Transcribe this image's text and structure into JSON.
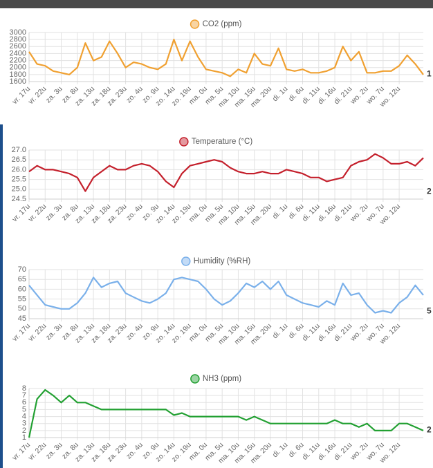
{
  "chart_data": [
    {
      "type": "line",
      "title": "CO2 (ppm)",
      "color": "#f0a030",
      "edge_label": "1",
      "categories": [
        "vr. 17u",
        null,
        "vr. 22u",
        null,
        "za. 3u",
        null,
        "za. 8u",
        null,
        "za. 13u",
        null,
        "za. 18u",
        null,
        "za. 23u",
        null,
        "zo. 4u",
        null,
        "zo. 9u",
        null,
        "zo. 14u",
        null,
        "zo. 19u",
        null,
        "ma. 0u",
        null,
        "ma. 5u",
        null,
        "ma. 10u",
        null,
        "ma. 15u",
        null,
        "ma. 20u",
        null,
        "di. 1u",
        null,
        "di. 6u",
        null,
        "di. 11u",
        null,
        "di. 16u",
        null,
        "di. 21u",
        null,
        "wo. 2u",
        null,
        "wo. 7u",
        null,
        "wo. 12u",
        null,
        null,
        null
      ],
      "values": [
        2450,
        2100,
        2050,
        1900,
        1850,
        1800,
        2000,
        2700,
        2200,
        2300,
        2750,
        2400,
        2000,
        2150,
        2100,
        2000,
        1950,
        2100,
        2800,
        2200,
        2750,
        2300,
        1950,
        1900,
        1850,
        1750,
        1950,
        1850,
        2400,
        2100,
        2050,
        2550,
        1950,
        1900,
        1950,
        1850,
        1850,
        1900,
        2000,
        2600,
        2200,
        2450,
        1850,
        1850,
        1900,
        1900,
        2050,
        2350,
        2100,
        1800
      ],
      "ylim": [
        1600,
        3000
      ],
      "yticks": [
        1600,
        1800,
        2000,
        2200,
        2400,
        2600,
        2800,
        3000
      ],
      "grid": true
    },
    {
      "type": "line",
      "title": "Temperature (°C)",
      "color": "#c4202c",
      "edge_label": "2",
      "categories": [
        "vr. 17u",
        null,
        "vr. 22u",
        null,
        "za. 3u",
        null,
        "za. 8u",
        null,
        "za. 13u",
        null,
        "za. 18u",
        null,
        "za. 23u",
        null,
        "zo. 4u",
        null,
        "zo. 9u",
        null,
        "zo. 14u",
        null,
        "zo. 19u",
        null,
        "ma. 0u",
        null,
        "ma. 5u",
        null,
        "ma. 10u",
        null,
        "ma. 15u",
        null,
        "ma. 20u",
        null,
        "di. 1u",
        null,
        "di. 6u",
        null,
        "di. 11u",
        null,
        "di. 16u",
        null,
        "di. 21u",
        null,
        "wo. 2u",
        null,
        "wo. 7u",
        null,
        "wo. 12u",
        null,
        null,
        null
      ],
      "values": [
        25.9,
        26.2,
        26.0,
        26.0,
        25.9,
        25.8,
        25.6,
        24.9,
        25.6,
        25.9,
        26.2,
        26.0,
        26.0,
        26.2,
        26.3,
        26.2,
        25.9,
        25.4,
        25.1,
        25.8,
        26.2,
        26.3,
        26.4,
        26.5,
        26.4,
        26.1,
        25.9,
        25.8,
        25.8,
        25.9,
        25.8,
        25.8,
        26.0,
        25.9,
        25.8,
        25.6,
        25.6,
        25.4,
        25.5,
        25.6,
        26.2,
        26.4,
        26.5,
        26.8,
        26.6,
        26.3,
        26.3,
        26.4,
        26.2,
        26.6
      ],
      "ylim": [
        24.5,
        27.0
      ],
      "yticks": [
        24.5,
        {
          "value": 25,
          "label": "25.0"
        },
        25.5,
        {
          "value": 26,
          "label": "26.0"
        },
        26.5,
        {
          "value": 27,
          "label": "27.0"
        }
      ],
      "grid": true
    },
    {
      "type": "line",
      "title": "Humidity (%RH)",
      "color": "#7ab0ea",
      "edge_label": "5",
      "categories": [
        "vr. 17u",
        null,
        "vr. 22u",
        null,
        "za. 3u",
        null,
        "za. 8u",
        null,
        "za. 13u",
        null,
        "za. 18u",
        null,
        "za. 23u",
        null,
        "zo. 4u",
        null,
        "zo. 9u",
        null,
        "zo. 14u",
        null,
        "zo. 19u",
        null,
        "ma. 0u",
        null,
        "ma. 5u",
        null,
        "ma. 10u",
        null,
        "ma. 15u",
        null,
        "ma. 20u",
        null,
        "di. 1u",
        null,
        "di. 6u",
        null,
        "di. 11u",
        null,
        "di. 16u",
        null,
        "di. 21u",
        null,
        "wo. 2u",
        null,
        "wo. 7u",
        null,
        "wo. 12u",
        null,
        null,
        null
      ],
      "values": [
        62,
        57,
        52,
        51,
        50,
        50,
        53,
        58,
        66,
        61,
        63,
        64,
        58,
        56,
        54,
        53,
        55,
        58,
        65,
        66,
        65,
        64,
        60,
        55,
        52,
        54,
        58,
        63,
        61,
        64,
        60,
        64,
        57,
        55,
        53,
        52,
        51,
        54,
        52,
        63,
        57,
        58,
        52,
        48,
        49,
        48,
        53,
        56,
        62,
        57
      ],
      "ylim": [
        45,
        70
      ],
      "yticks": [
        45,
        50,
        55,
        60,
        65,
        70
      ],
      "grid": true
    },
    {
      "type": "line",
      "title": "NH3 (ppm)",
      "color": "#22a032",
      "edge_label": "2",
      "categories": [
        "vr. 17u",
        null,
        "vr. 22u",
        null,
        "za. 3u",
        null,
        "za. 8u",
        null,
        "za. 13u",
        null,
        "za. 18u",
        null,
        "za. 23u",
        null,
        "zo. 4u",
        null,
        "zo. 9u",
        null,
        "zo. 14u",
        null,
        "zo. 19u",
        null,
        "ma. 0u",
        null,
        "ma. 5u",
        null,
        "ma. 10u",
        null,
        "ma. 15u",
        null,
        "ma. 20u",
        null,
        "di. 1u",
        null,
        "di. 6u",
        null,
        "di. 11u",
        null,
        "di. 16u",
        null,
        "di. 21u",
        null,
        "wo. 2u",
        null,
        "wo. 7u",
        null,
        "wo. 12u",
        null,
        null,
        null
      ],
      "values": [
        1,
        6.5,
        7.8,
        7,
        6,
        7,
        6,
        6,
        5.5,
        5,
        5,
        5,
        5,
        5,
        5,
        5,
        5,
        5,
        4.2,
        4.5,
        4,
        4,
        4,
        4,
        4,
        4,
        4,
        3.5,
        4,
        3.5,
        3,
        3,
        3,
        3,
        3,
        3,
        3,
        3,
        3.5,
        3,
        3,
        2.5,
        3,
        2,
        2,
        2,
        3,
        3,
        2.5,
        2
      ],
      "ylim": [
        1,
        8
      ],
      "yticks": [
        1,
        2,
        3,
        4,
        5,
        6,
        7,
        8
      ],
      "grid": true
    }
  ]
}
